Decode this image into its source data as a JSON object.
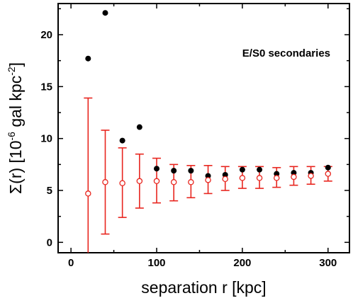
{
  "chart_data": {
    "type": "scatter",
    "annotation": "E/S0 secondaries",
    "xlabel": "separation r [kpc]",
    "ylabel": {
      "prefix": "Σ(r) [10",
      "exp1": "-6",
      "middle": " gal kpc",
      "exp2": "-2",
      "suffix": "]"
    },
    "xlim": [
      -15,
      325
    ],
    "ylim": [
      -1,
      23
    ],
    "xticks": [
      0,
      100,
      200,
      300
    ],
    "yticks": [
      0,
      5,
      10,
      15,
      20
    ],
    "grid": false,
    "series": [
      {
        "marker": "filled-circle",
        "color": "#000000",
        "x": [
          20,
          40,
          60,
          80,
          100,
          120,
          140,
          160,
          180,
          200,
          220,
          240,
          260,
          280,
          300
        ],
        "y": [
          17.7,
          22.1,
          9.8,
          11.1,
          7.1,
          6.9,
          6.9,
          6.4,
          6.5,
          7.0,
          7.0,
          6.6,
          6.7,
          6.7,
          7.2
        ]
      },
      {
        "marker": "open-circle",
        "color": "#e8261f",
        "x": [
          20,
          40,
          60,
          80,
          100,
          120,
          140,
          160,
          180,
          200,
          220,
          240,
          260,
          280,
          300
        ],
        "y": [
          4.7,
          5.8,
          5.7,
          5.9,
          5.9,
          5.8,
          5.8,
          6.0,
          6.1,
          6.2,
          6.2,
          6.2,
          6.3,
          6.4,
          6.6
        ],
        "err_low": [
          -1.2,
          0.8,
          2.4,
          3.3,
          3.8,
          4.0,
          4.3,
          4.7,
          5.0,
          5.2,
          5.2,
          5.3,
          5.5,
          5.6,
          5.9
        ],
        "err_high": [
          13.9,
          10.8,
          9.1,
          8.5,
          8.1,
          7.5,
          7.4,
          7.4,
          7.3,
          7.3,
          7.3,
          7.2,
          7.3,
          7.3,
          7.3
        ]
      }
    ]
  }
}
